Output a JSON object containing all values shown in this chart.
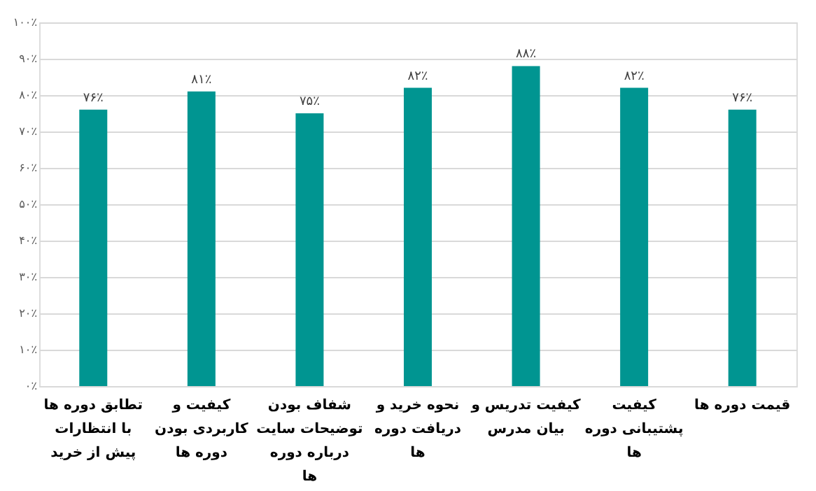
{
  "chart_data": {
    "type": "bar",
    "categories": [
      "تطابق دوره ها با انتظارات پیش از خرید",
      "کیفیت و کاربردی بودن دوره ها",
      "شفاف بودن توضیحات سایت درباره دوره ها",
      "نحوه خرید و دریافت دوره ها",
      "کیفیت تدریس و بیان مدرس",
      "کیفیت پشتیبانی دوره ها",
      "قیمت دوره ها"
    ],
    "values": [
      76,
      81,
      75,
      82,
      88,
      82,
      76
    ],
    "value_labels": [
      "۷۶٪",
      "۸۱٪",
      "۷۵٪",
      "۸۲٪",
      "۸۸٪",
      "۸۲٪",
      "۷۶٪"
    ],
    "color": "#009591",
    "ylim": [
      0,
      100
    ],
    "yticks": [
      {
        "value": 0,
        "label": "۰٪"
      },
      {
        "value": 10,
        "label": "۱۰٪"
      },
      {
        "value": 20,
        "label": "۲۰٪"
      },
      {
        "value": 30,
        "label": "۳۰٪"
      },
      {
        "value": 40,
        "label": "۴۰٪"
      },
      {
        "value": 50,
        "label": "۵۰٪"
      },
      {
        "value": 60,
        "label": "۶۰٪"
      },
      {
        "value": 70,
        "label": "۷۰٪"
      },
      {
        "value": 80,
        "label": "۸۰٪"
      },
      {
        "value": 90,
        "label": "۹۰٪"
      },
      {
        "value": 100,
        "label": "۱۰۰٪"
      }
    ],
    "grid": "y"
  }
}
